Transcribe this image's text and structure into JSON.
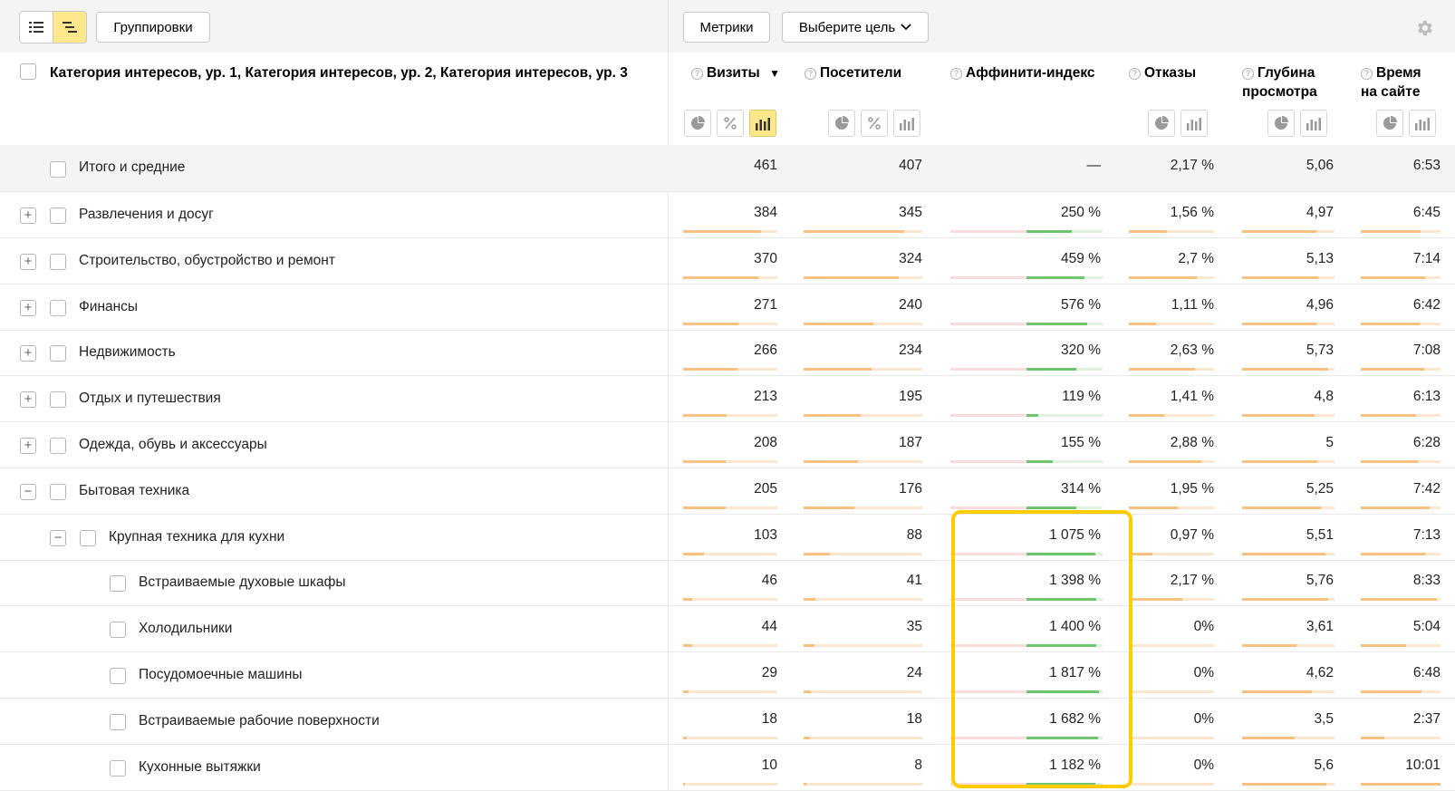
{
  "toolbar": {
    "groupings_label": "Группировки",
    "metrics_label": "Метрики",
    "goal_label": "Выберите цель"
  },
  "colors": {
    "accent_yellow": "#ffe88c",
    "bar_orange": "#f9c07f",
    "bar_green": "#6fc46f",
    "highlight": "#ffcc00"
  },
  "header": {
    "dimension_title": "Категория интересов, ур. 1, Категория интересов, ур. 2, Категория интересов, ур. 3",
    "col_visits": "Визиты",
    "sort_indicator": "▼",
    "col_visitors": "Посетители",
    "col_affinity": "Аффинити-индекс",
    "col_bounce": "Отказы",
    "col_depth_1": "Глубина",
    "col_depth_2": "просмотра",
    "col_time_1": "Время",
    "col_time_2": "на сайте",
    "help_glyph": "?"
  },
  "totals": {
    "label": "Итого и средние",
    "visits": "461",
    "visitors": "407",
    "affinity": "—",
    "bounce": "2,17 %",
    "depth": "5,06",
    "time": "6:53"
  },
  "rows": [
    {
      "label": "Развлечения и досуг",
      "level": 1,
      "expander": "+",
      "visits": "384",
      "visitors": "345",
      "affinity": "250 %",
      "bounce": "1,56 %",
      "depth": "4,97",
      "time": "6:45",
      "visits_frac": 0.83,
      "visitors_frac": 0.85,
      "aff_frac": 0.6,
      "bounce_frac": 0.45,
      "depth_frac": 0.8,
      "time_frac": 0.75
    },
    {
      "label": "Строительство, обустройство и ремонт",
      "level": 1,
      "expander": "+",
      "visits": "370",
      "visitors": "324",
      "affinity": "459 %",
      "bounce": "2,7 %",
      "depth": "5,13",
      "time": "7:14",
      "visits_frac": 0.8,
      "visitors_frac": 0.8,
      "aff_frac": 0.76,
      "bounce_frac": 0.8,
      "depth_frac": 0.82,
      "time_frac": 0.81
    },
    {
      "label": "Финансы",
      "level": 1,
      "expander": "+",
      "visits": "271",
      "visitors": "240",
      "affinity": "576 %",
      "bounce": "1,11 %",
      "depth": "4,96",
      "time": "6:42",
      "visits_frac": 0.59,
      "visitors_frac": 0.59,
      "aff_frac": 0.8,
      "bounce_frac": 0.32,
      "depth_frac": 0.8,
      "time_frac": 0.74
    },
    {
      "label": "Недвижимость",
      "level": 1,
      "expander": "+",
      "visits": "266",
      "visitors": "234",
      "affinity": "320 %",
      "bounce": "2,63 %",
      "depth": "5,73",
      "time": "7:08",
      "visits_frac": 0.58,
      "visitors_frac": 0.57,
      "aff_frac": 0.66,
      "bounce_frac": 0.78,
      "depth_frac": 0.93,
      "time_frac": 0.79
    },
    {
      "label": "Отдых и путешествия",
      "level": 1,
      "expander": "+",
      "visits": "213",
      "visitors": "195",
      "affinity": "119 %",
      "bounce": "1,41 %",
      "depth": "4,8",
      "time": "6:13",
      "visits_frac": 0.46,
      "visitors_frac": 0.48,
      "aff_frac": 0.15,
      "bounce_frac": 0.41,
      "depth_frac": 0.78,
      "time_frac": 0.69
    },
    {
      "label": "Одежда, обувь и аксессуары",
      "level": 1,
      "expander": "+",
      "visits": "208",
      "visitors": "187",
      "affinity": "155 %",
      "bounce": "2,88 %",
      "depth": "5",
      "time": "6:28",
      "visits_frac": 0.45,
      "visitors_frac": 0.46,
      "aff_frac": 0.35,
      "bounce_frac": 0.85,
      "depth_frac": 0.81,
      "time_frac": 0.72
    },
    {
      "label": "Бытовая техника",
      "level": 1,
      "expander": "−",
      "visits": "205",
      "visitors": "176",
      "affinity": "314 %",
      "bounce": "1,95 %",
      "depth": "5,25",
      "time": "7:42",
      "visits_frac": 0.45,
      "visitors_frac": 0.43,
      "aff_frac": 0.65,
      "bounce_frac": 0.57,
      "depth_frac": 0.85,
      "time_frac": 0.86
    },
    {
      "label": "Крупная техника для кухни",
      "level": 2,
      "expander": "−",
      "visits": "103",
      "visitors": "88",
      "affinity": "1 075 %",
      "bounce": "0,97 %",
      "depth": "5,51",
      "time": "7:13",
      "visits_frac": 0.22,
      "visitors_frac": 0.22,
      "aff_frac": 0.9,
      "bounce_frac": 0.28,
      "depth_frac": 0.9,
      "time_frac": 0.81
    },
    {
      "label": "Встраиваемые духовые шкафы",
      "level": 3,
      "expander": "",
      "visits": "46",
      "visitors": "41",
      "affinity": "1 398 %",
      "bounce": "2,17 %",
      "depth": "5,76",
      "time": "8:33",
      "visits_frac": 0.1,
      "visitors_frac": 0.1,
      "aff_frac": 0.92,
      "bounce_frac": 0.63,
      "depth_frac": 0.93,
      "time_frac": 0.96
    },
    {
      "label": "Холодильники",
      "level": 3,
      "expander": "",
      "visits": "44",
      "visitors": "35",
      "affinity": "1 400 %",
      "bounce": "0%",
      "depth": "3,61",
      "time": "5:04",
      "visits_frac": 0.1,
      "visitors_frac": 0.09,
      "aff_frac": 0.92,
      "bounce_frac": 0.0,
      "depth_frac": 0.59,
      "time_frac": 0.57
    },
    {
      "label": "Посудомоечные машины",
      "level": 3,
      "expander": "",
      "visits": "29",
      "visitors": "24",
      "affinity": "1 817 %",
      "bounce": "0%",
      "depth": "4,62",
      "time": "6:48",
      "visits_frac": 0.06,
      "visitors_frac": 0.06,
      "aff_frac": 0.95,
      "bounce_frac": 0.0,
      "depth_frac": 0.75,
      "time_frac": 0.76
    },
    {
      "label": "Встраиваемые рабочие поверхности",
      "level": 3,
      "expander": "",
      "visits": "18",
      "visitors": "18",
      "affinity": "1 682 %",
      "bounce": "0%",
      "depth": "3,5",
      "time": "2:37",
      "visits_frac": 0.04,
      "visitors_frac": 0.05,
      "aff_frac": 0.94,
      "bounce_frac": 0.0,
      "depth_frac": 0.57,
      "time_frac": 0.29
    },
    {
      "label": "Кухонные вытяжки",
      "level": 3,
      "expander": "",
      "visits": "10",
      "visitors": "8",
      "affinity": "1 182 %",
      "bounce": "0%",
      "depth": "5,6",
      "time": "10:01",
      "visits_frac": 0.02,
      "visitors_frac": 0.02,
      "aff_frac": 0.9,
      "bounce_frac": 0.0,
      "depth_frac": 0.91,
      "time_frac": 1.0
    }
  ]
}
